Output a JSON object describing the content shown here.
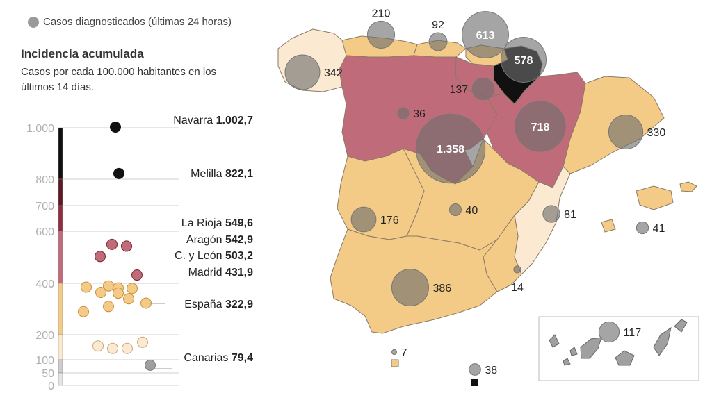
{
  "legend": {
    "circle_label": "Casos diagnosticados (últimas 24 horas)",
    "circle_color": "#9a9a9a"
  },
  "title": "Incidencia acumulada",
  "subtitle": "Casos por cada 100.000 habitantes en los últimos 14 días.",
  "colors": {
    "black": "#111111",
    "dark_red": "#5e1a24",
    "red": "#8e2f3f",
    "pink": "#c06b7a",
    "orange": "#f4cb86",
    "cream": "#fbead1",
    "grey_point": "#a0a0a0"
  },
  "chart_data": [
    {
      "type": "scatter",
      "title": "Incidencia acumulada",
      "y_tick_labels": [
        "1.000",
        "800",
        "700",
        "600",
        "400",
        "200",
        "100",
        "50",
        "0"
      ],
      "y_ticks": [
        1000,
        800,
        700,
        600,
        400,
        200,
        100,
        50,
        0
      ],
      "ylim": [
        0,
        1000
      ],
      "labeled_points": [
        {
          "name": "Navarra",
          "value_label": "1.002,7",
          "value": 1002.7
        },
        {
          "name": "Melilla",
          "value_label": "822,1",
          "value": 822.1
        },
        {
          "name": "La Rioja",
          "value_label": "549,6",
          "value": 549.6
        },
        {
          "name": "Aragón",
          "value_label": "542,9",
          "value": 542.9
        },
        {
          "name": "C. y León",
          "value_label": "503,2",
          "value": 503.2
        },
        {
          "name": "Madrid",
          "value_label": "431,9",
          "value": 431.9
        },
        {
          "name": "España",
          "value_label": "322,9",
          "value": 322.9
        },
        {
          "name": "Canarias",
          "value_label": "79,4",
          "value": 79.4
        }
      ],
      "points": [
        {
          "value": 1002.7,
          "group": "black"
        },
        {
          "value": 822.1,
          "group": "black"
        },
        {
          "value": 549.6,
          "group": "red"
        },
        {
          "value": 542.9,
          "group": "red"
        },
        {
          "value": 503.2,
          "group": "red"
        },
        {
          "value": 431.9,
          "group": "red"
        },
        {
          "value": 385,
          "group": "orange"
        },
        {
          "value": 390,
          "group": "orange"
        },
        {
          "value": 380,
          "group": "orange"
        },
        {
          "value": 382,
          "group": "orange"
        },
        {
          "value": 365,
          "group": "orange"
        },
        {
          "value": 362,
          "group": "orange"
        },
        {
          "value": 322.9,
          "group": "orange"
        },
        {
          "value": 340,
          "group": "orange"
        },
        {
          "value": 310,
          "group": "orange"
        },
        {
          "value": 290,
          "group": "orange"
        },
        {
          "value": 170,
          "group": "cream"
        },
        {
          "value": 155,
          "group": "cream"
        },
        {
          "value": 145,
          "group": "cream"
        },
        {
          "value": 145,
          "group": "cream"
        },
        {
          "value": 79.4,
          "group": "grey"
        }
      ]
    },
    {
      "type": "map_bubbles",
      "label": "Casos diagnosticados (últimas 24 horas)",
      "regions": [
        {
          "name": "Galicia",
          "value_label": "342",
          "value": 342
        },
        {
          "name": "Asturias",
          "value_label": "210",
          "value": 210
        },
        {
          "name": "Cantabria",
          "value_label": "92",
          "value": 92
        },
        {
          "name": "País Vasco",
          "value_label": "613",
          "value": 613
        },
        {
          "name": "Navarra",
          "value_label": "578",
          "value": 578
        },
        {
          "name": "La Rioja",
          "value_label": "137",
          "value": 137
        },
        {
          "name": "C. y León",
          "value_label": "36",
          "value": 36
        },
        {
          "name": "Aragón",
          "value_label": "718",
          "value": 718
        },
        {
          "name": "Cataluña",
          "value_label": "330",
          "value": 330
        },
        {
          "name": "Madrid",
          "value_label": "1.358",
          "value": 1358
        },
        {
          "name": "Extremadura",
          "value_label": "176",
          "value": 176
        },
        {
          "name": "C.-La Mancha",
          "value_label": "40",
          "value": 40
        },
        {
          "name": "C. Valenciana",
          "value_label": "81",
          "value": 81
        },
        {
          "name": "Baleares",
          "value_label": "41",
          "value": 41
        },
        {
          "name": "Andalucía",
          "value_label": "386",
          "value": 386
        },
        {
          "name": "Murcia",
          "value_label": "14",
          "value": 14
        },
        {
          "name": "Ceuta",
          "value_label": "7",
          "value": 7
        },
        {
          "name": "Melilla",
          "value_label": "38",
          "value": 38
        },
        {
          "name": "Canarias",
          "value_label": "117",
          "value": 117
        }
      ]
    }
  ]
}
